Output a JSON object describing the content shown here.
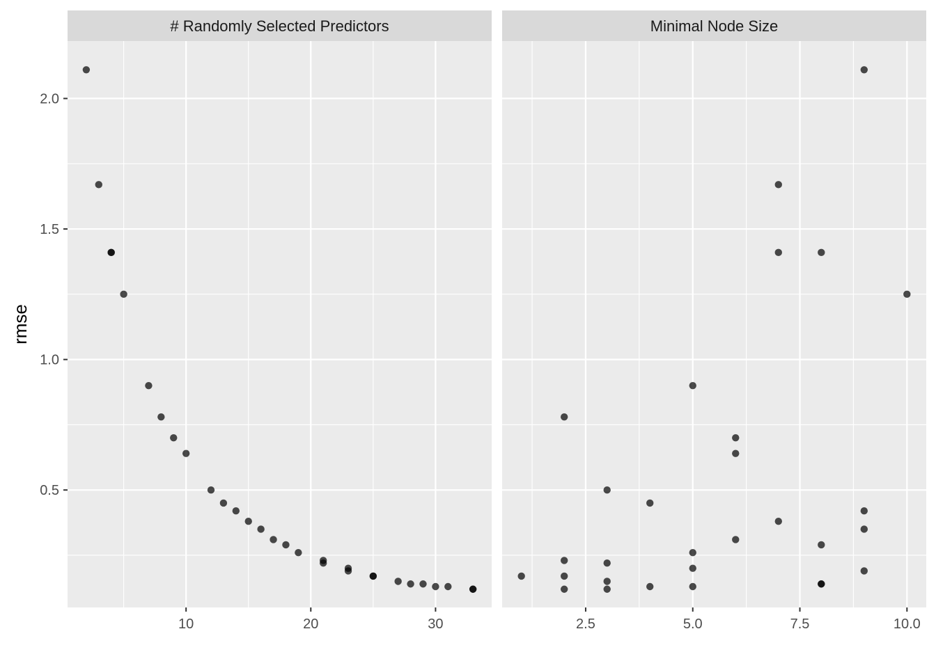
{
  "chart_data": {
    "type": "scatter",
    "ylabel": "rmse",
    "xlabel": "",
    "ylim": [
      0.05,
      2.22
    ],
    "y_ticks": [
      0.5,
      1.0,
      1.5,
      2.0
    ],
    "y_tick_labels": [
      "0.5",
      "1.0",
      "1.5",
      "2.0"
    ],
    "grid": true,
    "point_color": "#000000",
    "panel_background": "#ebebeb",
    "strip_background": "#d9d9d9",
    "facets": [
      {
        "strip": "# Randomly Selected Predictors",
        "xlim": [
          0.5,
          34.5
        ],
        "x_ticks": [
          10,
          20,
          30
        ],
        "x_tick_labels": [
          "10",
          "20",
          "30"
        ],
        "x": [
          2,
          3,
          4,
          4,
          5,
          7,
          8,
          9,
          10,
          12,
          13,
          14,
          15,
          16,
          17,
          18,
          19,
          21,
          21,
          23,
          23,
          25,
          25,
          27,
          28,
          29,
          30,
          31,
          33,
          33
        ],
        "y": [
          2.11,
          1.67,
          1.41,
          1.41,
          1.25,
          0.9,
          0.78,
          0.7,
          0.64,
          0.5,
          0.45,
          0.42,
          0.38,
          0.35,
          0.31,
          0.29,
          0.26,
          0.23,
          0.22,
          0.2,
          0.19,
          0.17,
          0.17,
          0.15,
          0.14,
          0.14,
          0.13,
          0.13,
          0.12,
          0.12
        ]
      },
      {
        "strip": "Minimal Node Size",
        "xlim": [
          0.55,
          10.45
        ],
        "x_ticks": [
          2.5,
          5.0,
          7.5,
          10.0
        ],
        "x_tick_labels": [
          "2.5",
          "5.0",
          "7.5",
          "10.0"
        ],
        "x": [
          9,
          7,
          7,
          8,
          10,
          5,
          2,
          6,
          6,
          3,
          4,
          9,
          7,
          9,
          6,
          8,
          5,
          2,
          3,
          5,
          9,
          1,
          2,
          3,
          8,
          8,
          4,
          5,
          2,
          3
        ],
        "y": [
          2.11,
          1.67,
          1.41,
          1.41,
          1.25,
          0.9,
          0.78,
          0.7,
          0.64,
          0.5,
          0.45,
          0.42,
          0.38,
          0.35,
          0.31,
          0.29,
          0.26,
          0.23,
          0.22,
          0.2,
          0.19,
          0.17,
          0.17,
          0.15,
          0.14,
          0.14,
          0.13,
          0.13,
          0.12,
          0.12
        ]
      }
    ]
  }
}
